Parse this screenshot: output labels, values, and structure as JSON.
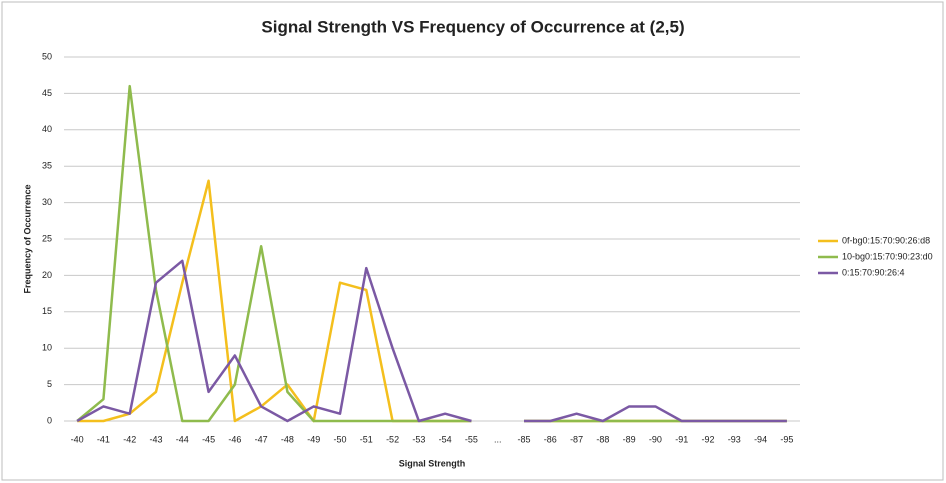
{
  "chart_data": {
    "type": "line",
    "title": "Signal Strength VS Frequency of Occurrence at (2,5)",
    "x_label": "Signal Strength",
    "y_label": "Frequency of Occurrence",
    "categories": [
      "-40",
      "-41",
      "-42",
      "-43",
      "-44",
      "-45",
      "-46",
      "-47",
      "-48",
      "-49",
      "-50",
      "-51",
      "-52",
      "-53",
      "-54",
      "-55",
      "...",
      "-85",
      "-86",
      "-87",
      "-88",
      "-89",
      "-90",
      "-91",
      "-92",
      "-93",
      "-94",
      "-95"
    ],
    "series": [
      {
        "name": "0f-bg0:15:70:90:26:d8",
        "color": "#f4bf1d",
        "values": [
          0,
          0,
          1,
          4,
          19,
          33,
          0,
          2,
          5,
          0,
          19,
          18,
          0,
          0,
          0,
          0,
          null,
          0,
          0,
          0,
          0,
          0,
          0,
          0,
          0,
          0,
          0,
          0
        ]
      },
      {
        "name": "10-bg0:15:70:90:23:d0",
        "color": "#8fbb4d",
        "values": [
          0,
          3,
          46,
          18,
          0,
          0,
          5,
          24,
          4,
          0,
          0,
          0,
          0,
          0,
          0,
          0,
          null,
          0,
          0,
          0,
          0,
          0,
          0,
          0,
          0,
          0,
          0,
          0
        ]
      },
      {
        "name": "0:15:70:90:26:4",
        "color": "#7b59a4",
        "values": [
          0,
          2,
          1,
          19,
          22,
          4,
          9,
          2,
          0,
          2,
          1,
          21,
          10,
          0,
          1,
          0,
          null,
          0,
          0,
          1,
          0,
          2,
          2,
          0,
          0,
          0,
          0,
          0
        ]
      }
    ],
    "ylim": [
      0,
      50
    ],
    "yticks": [
      0,
      5,
      10,
      15,
      20,
      25,
      30,
      35,
      40,
      45,
      50
    ],
    "grid": true,
    "legend": "right"
  }
}
